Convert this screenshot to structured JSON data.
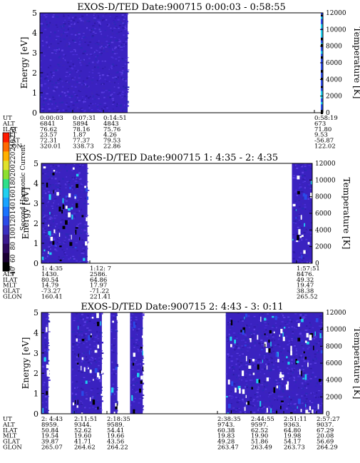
{
  "chart_data": [
    {
      "type": "heatmap",
      "title": "EXOS-D/TED   Date:900715  0:00:03 - 0:58:55",
      "ylabel": "Energy [eV]",
      "right_label": "Temperature [K]",
      "yticks": [
        "0",
        "1",
        "2",
        "3",
        "4",
        "5"
      ],
      "ylim": [
        0,
        5
      ],
      "right_ticks": [
        "0",
        "2000",
        "4000",
        "6000",
        "8000",
        "10000",
        "12000"
      ],
      "right_lim": [
        0,
        12000
      ],
      "data_spans": [
        [
          0.0,
          0.31
        ]
      ],
      "right_edge_strip": true,
      "table": {
        "row_labels": [
          "UT",
          "ALT",
          "ILAT",
          "MLT",
          "GLAT",
          "GLON"
        ],
        "columns": [
          {
            "values": [
              "0:00:03",
              "6841",
              "76.62",
              "23.57",
              "72.31",
              "320.01"
            ]
          },
          {
            "values": [
              "0:07:31",
              "5894",
              "78.16",
              "1.87",
              "77.37",
              "338.73"
            ]
          },
          {
            "values": [
              "0:14:51",
              "4843",
              "75.76",
              "4.26",
              "79.53",
              "22.86"
            ]
          },
          {
            "values": [
              "0:58:19",
              "673",
              "71.80",
              "9.53",
              "-56.87",
              "122.02"
            ]
          }
        ]
      }
    },
    {
      "type": "heatmap",
      "title": "EXOS-D/TED   Date:900715  1: 4:35 - 2: 4:35",
      "ylabel": "Energy [eV]",
      "right_label": "Temperature [K]",
      "yticks": [
        "0",
        "1",
        "2",
        "3",
        "4",
        "5"
      ],
      "ylim": [
        0,
        5
      ],
      "right_ticks": [
        "0",
        "2000",
        "4000",
        "6000",
        "8000",
        "10000",
        "12000"
      ],
      "right_lim": [
        0,
        12000
      ],
      "data_spans": [
        [
          0.0,
          0.17
        ],
        [
          0.925,
          1.0
        ]
      ],
      "colorbar": {
        "label": "Second Harmonic Current",
        "ticks": [
          "40",
          "60",
          "80",
          "100",
          "120",
          "140",
          "160",
          "180",
          "200",
          "220",
          "240",
          "250"
        ],
        "colors": [
          "#000000",
          "#1a0033",
          "#2d0a5e",
          "#3b1a8f",
          "#3a2fc0",
          "#2a4be8",
          "#1a73ff",
          "#19a3ff",
          "#1fd0f0",
          "#2ee08a",
          "#8de02e",
          "#e0e22a",
          "#ffb000",
          "#ff6a00",
          "#ff1a00"
        ]
      },
      "table": {
        "row_labels": [
          "UT",
          "ALT",
          "ILAT",
          "MLT",
          "GLAT",
          "GLON"
        ],
        "columns": [
          {
            "values": [
              "1: 4:35",
              "1430.",
              "80.54",
              "14.79",
              "-73.27",
              "160.41"
            ]
          },
          {
            "values": [
              "1:12: 7",
              "2586.",
              "64.86",
              "17.97",
              "-71.22",
              "221.41"
            ]
          },
          {
            "values": [
              "1:57:51",
              "8476.",
              "49.32",
              "19.47",
              "38.38",
              "265.52"
            ]
          }
        ]
      }
    },
    {
      "type": "heatmap",
      "title": "EXOS-D/TED   Date:900715  2: 4:43 - 3: 0:11",
      "ylabel": "Energy [eV]",
      "right_label": "Temperature [K]",
      "yticks": [
        "0",
        "1",
        "2",
        "3",
        "4",
        "5"
      ],
      "ylim": [
        0,
        5
      ],
      "right_ticks": [
        "0",
        "2000",
        "4000",
        "6000",
        "8000",
        "10000",
        "12000"
      ],
      "right_lim": [
        0,
        12000
      ],
      "data_spans": [
        [
          0.0,
          0.025
        ],
        [
          0.105,
          0.215
        ],
        [
          0.245,
          0.27
        ],
        [
          0.315,
          0.36
        ],
        [
          0.655,
          1.0
        ]
      ],
      "table": {
        "row_labels": [
          "UT",
          "ALT",
          "ILAT",
          "MLT",
          "GLAT",
          "GLON"
        ],
        "columns": [
          {
            "values": [
              "2: 4:43",
              "8959.",
              "50.84",
              "19.54",
              "39.87",
              "265.07"
            ]
          },
          {
            "values": [
              "2:11:51",
              "9344.",
              "52.62",
              "19.60",
              "41.71",
              "264.62"
            ]
          },
          {
            "values": [
              "2:18:35",
              "9589.",
              "54.41",
              "19.66",
              "43.56",
              "264.22"
            ]
          },
          {
            "values": [
              "2:38:35",
              "9743.",
              "60.38",
              "19.83",
              "49.28",
              "263.47"
            ]
          },
          {
            "values": [
              "2:44:55",
              "9597.",
              "62.52",
              "19.90",
              "51.86",
              "263.49"
            ]
          },
          {
            "values": [
              "2:51:11",
              "9363.",
              "64.80",
              "19.98",
              "54.17",
              "263.73"
            ]
          },
          {
            "values": [
              "2:57:27",
              "9037.",
              "67.29",
              "20.08",
              "56.69",
              "264.29"
            ]
          }
        ]
      }
    }
  ]
}
